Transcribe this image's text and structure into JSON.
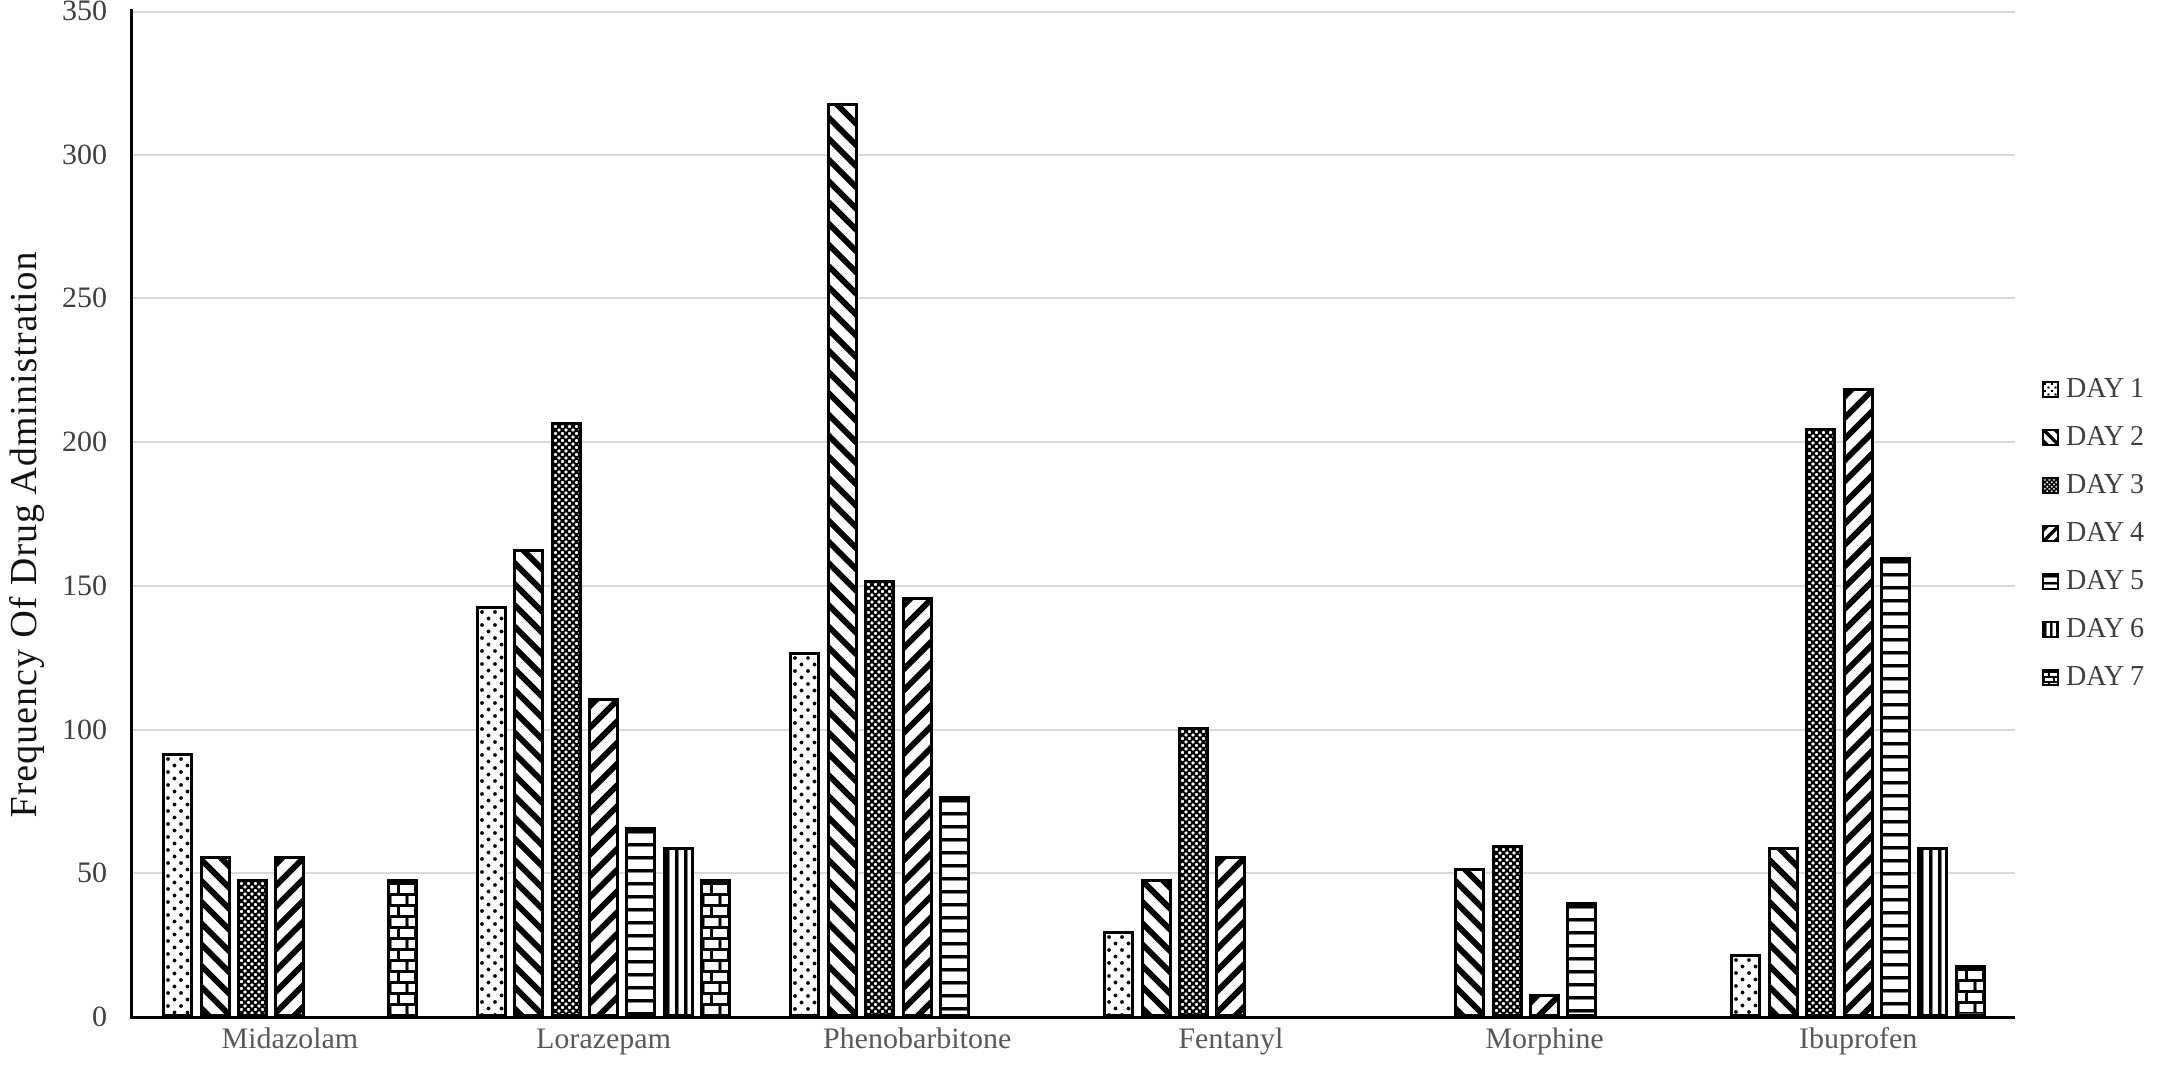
{
  "chart_data": {
    "type": "bar",
    "title": "",
    "xlabel": "",
    "ylabel": "Frequency Of Drug Administration",
    "ylim": [
      0,
      350
    ],
    "ytick_step": 50,
    "yticks": [
      "0",
      "50",
      "100",
      "150",
      "200",
      "250",
      "300",
      "350"
    ],
    "grid": "horizontal",
    "legend_position": "right",
    "categories": [
      "Midazolam",
      "Lorazepam",
      "Phenobarbitone",
      "Fentanyl",
      "Morphine",
      "Ibuprofen"
    ],
    "series": [
      {
        "name": "DAY 1",
        "pattern": "sparse-dots",
        "values": [
          92,
          143,
          127,
          30,
          0,
          22
        ]
      },
      {
        "name": "DAY 2",
        "pattern": "diagonal-stripes-down",
        "values": [
          56,
          163,
          318,
          48,
          52,
          59
        ]
      },
      {
        "name": "DAY 3",
        "pattern": "dense-dots",
        "values": [
          48,
          207,
          152,
          101,
          60,
          205
        ]
      },
      {
        "name": "DAY 4",
        "pattern": "diagonal-stripes-up",
        "values": [
          56,
          111,
          146,
          56,
          8,
          219
        ]
      },
      {
        "name": "DAY 5",
        "pattern": "horizontal-stripes",
        "values": [
          0,
          66,
          77,
          0,
          40,
          160
        ]
      },
      {
        "name": "DAY 6",
        "pattern": "vertical-stripes",
        "values": [
          0,
          59,
          0,
          0,
          0,
          59
        ]
      },
      {
        "name": "DAY 7",
        "pattern": "brick",
        "values": [
          48,
          48,
          0,
          0,
          0,
          18
        ]
      }
    ],
    "colors": {
      "bar_fill": "#ffffff",
      "bar_stroke": "#000000",
      "gridline": "#d9d9d9",
      "axis": "#000000",
      "text": "#404040"
    }
  }
}
